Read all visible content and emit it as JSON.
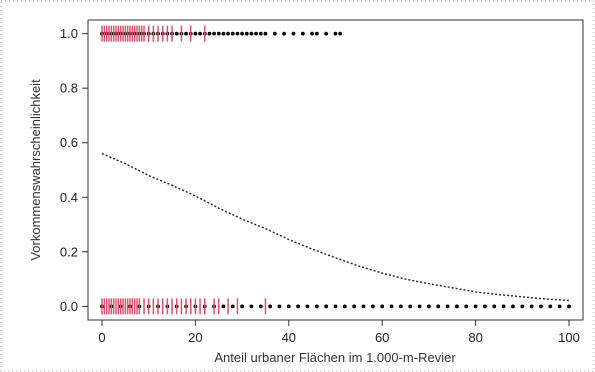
{
  "chart_data": {
    "type": "scatter",
    "title": "",
    "xlabel": "Anteil urbaner Flächen im 1.000-m-Revier",
    "ylabel": "Vorkommenswahrscheinlichkeit",
    "xlim": [
      -3,
      103
    ],
    "ylim": [
      -0.05,
      1.05
    ],
    "x_ticks": [
      "0",
      "20",
      "40",
      "60",
      "80",
      "100"
    ],
    "y_ticks": [
      "0.0",
      "0.2",
      "0.4",
      "0.6",
      "0.8",
      "1.0"
    ],
    "grid": false,
    "legend": "none",
    "series": [
      {
        "values": [
          [
            0,
            0.56
          ],
          [
            5,
            0.523
          ],
          [
            10,
            0.48
          ],
          [
            15,
            0.444
          ],
          [
            20,
            0.405
          ],
          [
            25,
            0.36
          ],
          [
            30,
            0.32
          ],
          [
            35,
            0.285
          ],
          [
            40,
            0.245
          ],
          [
            45,
            0.21
          ],
          [
            50,
            0.178
          ],
          [
            55,
            0.148
          ],
          [
            60,
            0.122
          ],
          [
            65,
            0.1
          ],
          [
            70,
            0.083
          ],
          [
            75,
            0.068
          ],
          [
            80,
            0.053
          ],
          [
            85,
            0.043
          ],
          [
            90,
            0.035
          ],
          [
            95,
            0.027
          ],
          [
            100,
            0.022
          ]
        ],
        "line": "dashed",
        "color": "#222222"
      },
      {
        "y": 1.0,
        "points_x": [
          0,
          1,
          2,
          3,
          4,
          5,
          6,
          7,
          8,
          9,
          10,
          11,
          12,
          13,
          14,
          15,
          16,
          17,
          18,
          19,
          20,
          21,
          22,
          23,
          24,
          25,
          26,
          27,
          28,
          29,
          30,
          31,
          32,
          33,
          34,
          35,
          37,
          39,
          41,
          43,
          45,
          46,
          48,
          50,
          51
        ],
        "marker": "dot",
        "color": "#000000"
      },
      {
        "y": 1.0,
        "rug_x": [
          0,
          0.5,
          1,
          1.5,
          2,
          2.5,
          3,
          3.5,
          4,
          4.5,
          5,
          5.5,
          6,
          6.5,
          7,
          7.5,
          8,
          8.5,
          9,
          10,
          11,
          12,
          13,
          14,
          15,
          17,
          19,
          22
        ],
        "marker": "tick",
        "color": "#d9536f"
      },
      {
        "y": 0.0,
        "points_x": [
          0,
          2,
          4,
          6,
          8,
          10,
          12,
          14,
          16,
          18,
          20,
          22,
          24,
          26,
          28,
          30,
          32,
          34,
          36,
          38,
          40,
          42,
          44,
          46,
          48,
          50,
          52,
          54,
          56,
          58,
          60,
          62,
          64,
          66,
          68,
          70,
          72,
          74,
          76,
          78,
          80,
          82,
          84,
          86,
          88,
          90,
          92,
          94,
          96,
          98,
          100
        ],
        "marker": "dot",
        "color": "#000000"
      },
      {
        "y": 0.0,
        "rug_x": [
          0,
          0.5,
          1,
          1.5,
          2,
          2.5,
          3,
          3.5,
          4,
          4.5,
          5,
          5.5,
          6,
          6.5,
          7,
          7.5,
          8,
          9,
          10,
          11,
          12,
          13,
          14,
          15,
          16,
          17,
          18,
          19,
          20,
          21,
          22,
          24,
          25,
          27,
          29,
          35
        ],
        "marker": "tick",
        "color": "#d9536f"
      }
    ]
  }
}
